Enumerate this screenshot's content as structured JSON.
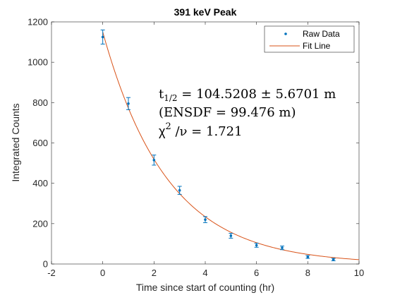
{
  "chart_data": {
    "type": "scatter",
    "title": "391 keV Peak",
    "xlabel": "Time since start of counting (hr)",
    "ylabel": "Integrated Counts",
    "xlim": [
      -2,
      10
    ],
    "ylim": [
      0,
      1200
    ],
    "xticks": [
      -2,
      0,
      2,
      4,
      6,
      8,
      10
    ],
    "yticks": [
      0,
      200,
      400,
      600,
      800,
      1000,
      1200
    ],
    "grid": false,
    "legend_position": "top-right",
    "series": [
      {
        "name": "Raw Data",
        "kind": "points-with-errorbars",
        "color": "#0072bd",
        "x": [
          0,
          1,
          2,
          3,
          4,
          5,
          6,
          7,
          8,
          9
        ],
        "y": [
          1125,
          795,
          515,
          365,
          220,
          140,
          93,
          80,
          35,
          22
        ],
        "err": [
          35,
          30,
          25,
          20,
          15,
          12,
          10,
          9,
          7,
          6
        ]
      },
      {
        "name": "Fit Line",
        "kind": "line",
        "color": "#d95319",
        "model": "exponential",
        "amplitude": 1150,
        "half_life_hr": 1.742,
        "x_start": 0,
        "x_end": 10
      }
    ],
    "annotations": [
      {
        "id": "halflife",
        "text": "t1/2 = 104.5208 ± 5.6701 m"
      },
      {
        "id": "ensdf",
        "text": "(ENSDF = 99.476 m)"
      },
      {
        "id": "chisq",
        "text": "χ2 /ν = 1.721"
      }
    ]
  }
}
